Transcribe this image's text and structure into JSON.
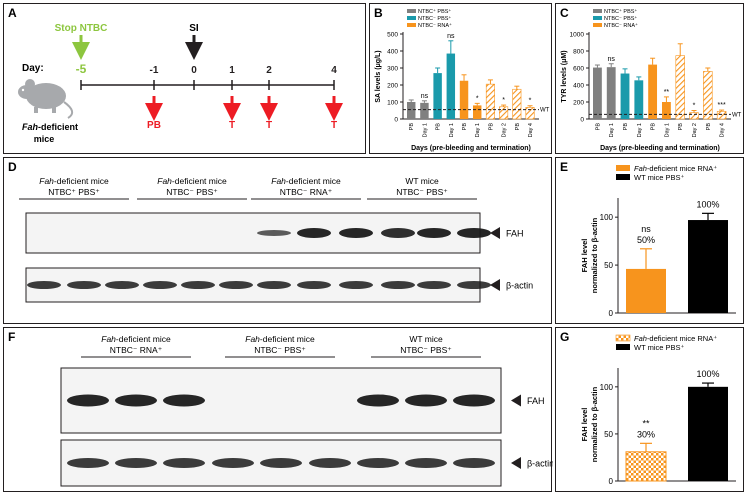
{
  "colors": {
    "gray": "#808080",
    "teal": "#1a9aab",
    "orange": "#f7941d",
    "black": "#000000",
    "green": "#8dc63f",
    "red": "#ed1c24",
    "dark": "#231f20"
  },
  "panel_a": {
    "label": "A",
    "stop_label": "Stop NTBC",
    "day_label": "Day:",
    "si_label": "SI",
    "days": [
      "-5",
      "-1",
      "0",
      "1",
      "2",
      "4"
    ],
    "events": [
      "PB",
      "T",
      "T",
      "T"
    ],
    "mouse_italic": "Fah",
    "mouse_rest": "-deficient",
    "mouse_line2": "mice",
    "icon": "mouse-icon"
  },
  "panel_d": {
    "label": "D",
    "groups": [
      {
        "l1i": "Fah",
        "l1": "-deficient mice",
        "l2": "NTBC⁺ PBS⁺"
      },
      {
        "l1i": "Fah",
        "l1": "-deficient mice",
        "l2": "NTBC⁻ PBS⁺"
      },
      {
        "l1i": "Fah",
        "l1": "-deficient mice",
        "l2": "NTBC⁻ RNA⁺"
      },
      {
        "l1i": "",
        "l1": "WT mice",
        "l2": "NTBC⁻ PBS⁺"
      }
    ],
    "blot1": "FAH",
    "blot2": "β-actin"
  },
  "panel_f": {
    "label": "F",
    "groups": [
      {
        "l1i": "Fah",
        "l1": "-deficient mice",
        "l2": "NTBC⁻ RNA⁺"
      },
      {
        "l1i": "Fah",
        "l1": "-deficient mice",
        "l2": "NTBC⁻ PBS⁺"
      },
      {
        "l1i": "",
        "l1": "WT mice",
        "l2": "NTBC⁻ PBS⁺"
      }
    ],
    "blot1": "FAH",
    "blot2": "β-actin"
  },
  "chart_data": [
    {
      "panel": "B",
      "type": "bar",
      "ylabel": "SA levels (μg/L)",
      "xlabel": "Days (pre-bleeding and termination)",
      "ylim": [
        0,
        500
      ],
      "yticks": [
        0,
        100,
        200,
        300,
        400,
        500
      ],
      "categories": [
        "PB",
        "Day 1",
        "PB",
        "Day 1",
        "PB",
        "Day 1",
        "PB",
        "Day 2",
        "PB",
        "Day 4"
      ],
      "values": [
        100,
        95,
        270,
        385,
        225,
        80,
        205,
        72,
        175,
        68
      ],
      "errors": [
        12,
        12,
        30,
        75,
        35,
        12,
        25,
        10,
        18,
        10
      ],
      "groups": [
        "g",
        "g",
        "t",
        "t",
        "o",
        "o",
        "h",
        "h",
        "h",
        "h"
      ],
      "annotations": [
        "",
        "ns",
        "",
        "ns",
        "",
        "*",
        "",
        "*",
        "",
        "*"
      ],
      "reference": {
        "value": 55,
        "label": "WT"
      },
      "legend": [
        "NTBC⁺ PBS⁺",
        "NTBC⁻ PBS⁺",
        "NTBC⁻ RNA⁺"
      ]
    },
    {
      "panel": "C",
      "type": "bar",
      "ylabel": "TYR levels (μM)",
      "xlabel": "Days (pre-bleeding and termination)",
      "ylim": [
        0,
        1000
      ],
      "yticks": [
        0,
        200,
        400,
        600,
        800,
        1000
      ],
      "categories": [
        "PB",
        "Day 1",
        "PB",
        "Day 1",
        "PB",
        "Day 1",
        "PB",
        "Day 2",
        "PB",
        "Day 4"
      ],
      "values": [
        605,
        610,
        535,
        455,
        640,
        200,
        745,
        75,
        560,
        90
      ],
      "errors": [
        30,
        40,
        55,
        40,
        75,
        60,
        140,
        25,
        40,
        15
      ],
      "groups": [
        "g",
        "g",
        "t",
        "t",
        "o",
        "o",
        "h",
        "h",
        "h",
        "h"
      ],
      "annotations": [
        "",
        "ns",
        "",
        "",
        "",
        "**",
        "",
        "*",
        "",
        "***"
      ],
      "reference": {
        "value": 55,
        "label": "WT"
      },
      "legend": [
        "NTBC⁺ PBS⁺",
        "NTBC⁻ PBS⁺",
        "NTBC⁻ RNA⁺"
      ]
    },
    {
      "panel": "E",
      "type": "bar",
      "ylabel": "FAH level normalized to β-actin",
      "ylim": [
        0,
        120
      ],
      "yticks": [
        0,
        50,
        100
      ],
      "values": [
        46,
        97
      ],
      "errors": [
        21,
        7
      ],
      "labels": [
        "50%",
        "100%"
      ],
      "sig": [
        "ns",
        ""
      ],
      "series": [
        {
          "name": "Fah-deficient mice RNA⁺",
          "fill": "orange"
        },
        {
          "name": "WT mice PBS⁺",
          "fill": "black"
        }
      ]
    },
    {
      "panel": "G",
      "type": "bar",
      "ylabel": "FAH level normalized to β-actin",
      "ylim": [
        0,
        120
      ],
      "yticks": [
        0,
        50,
        100
      ],
      "values": [
        31,
        100
      ],
      "errors": [
        9,
        4
      ],
      "labels": [
        "30%",
        "100%"
      ],
      "sig": [
        "**",
        ""
      ],
      "series": [
        {
          "name": "Fah-deficient mice RNA⁺",
          "fill": "hatch"
        },
        {
          "name": "WT mice PBS⁺",
          "fill": "black"
        }
      ]
    }
  ]
}
